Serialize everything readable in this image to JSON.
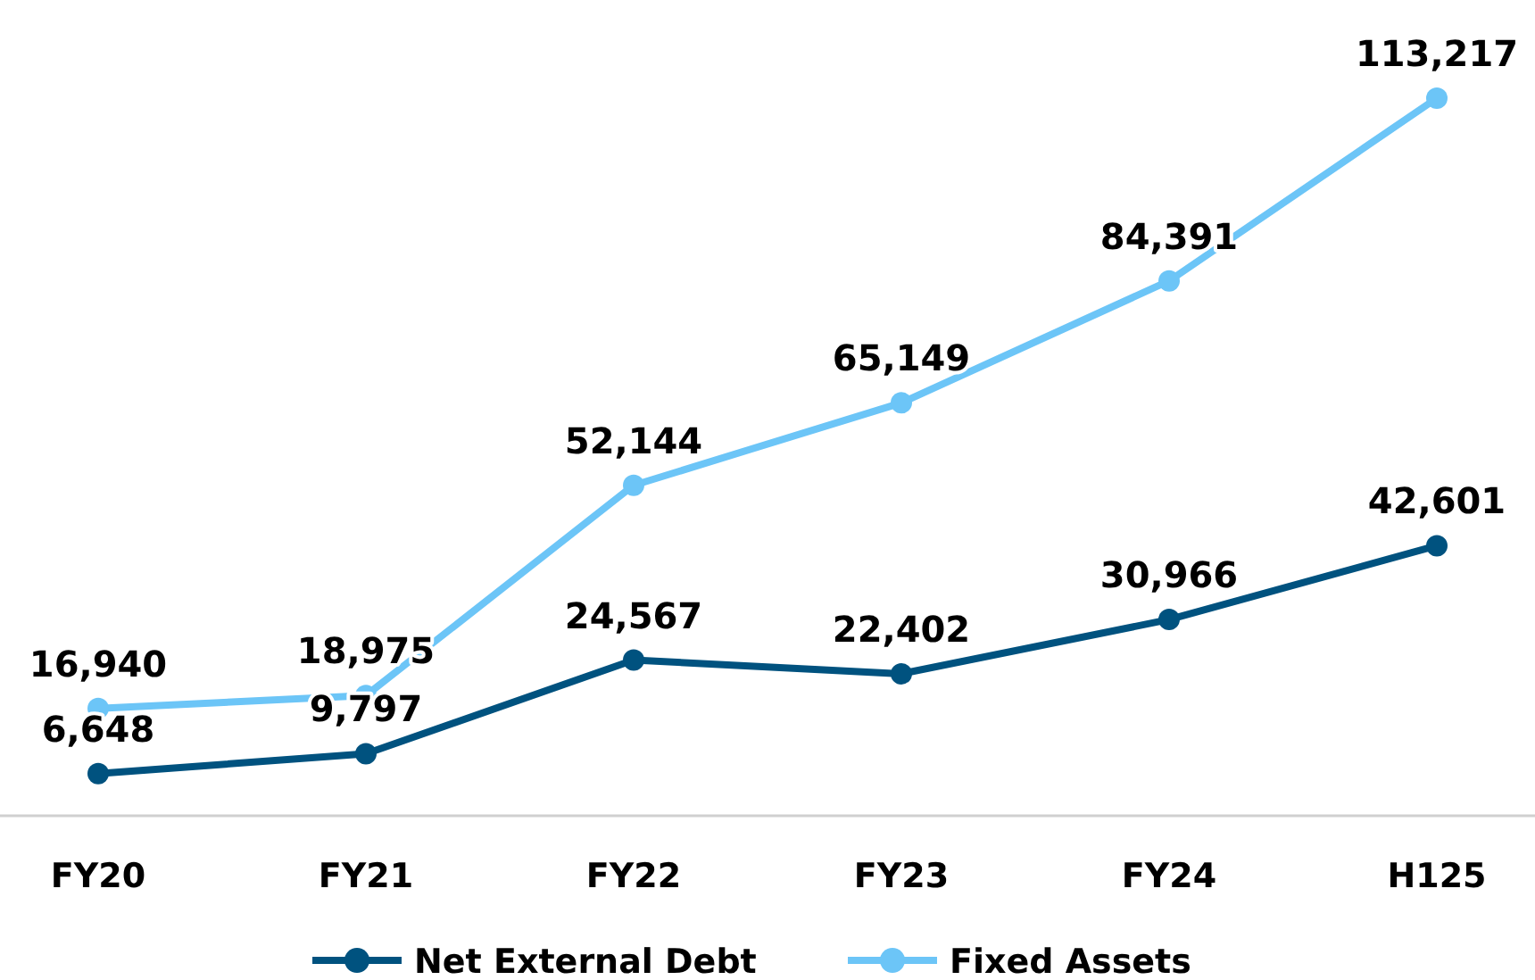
{
  "chart_data": {
    "type": "line",
    "categories": [
      "FY20",
      "FY21",
      "FY22",
      "FY23",
      "FY24",
      "H125"
    ],
    "series": [
      {
        "name": "Net External Debt",
        "color": "#00527f",
        "values": [
          6648,
          9797,
          24567,
          22402,
          30966,
          42601
        ],
        "value_labels": [
          "6,648",
          "9,797",
          "24,567",
          "22,402",
          "30,966",
          "42,601"
        ]
      },
      {
        "name": "Fixed Assets",
        "color": "#6cc5f7",
        "values": [
          16940,
          18975,
          52144,
          65149,
          84391,
          113217
        ],
        "value_labels": [
          "16,940",
          "18,975",
          "52,144",
          "65,149",
          "84,391",
          "113,217"
        ]
      }
    ],
    "tick_labels": "x",
    "legend": "bottom",
    "marker": "circle",
    "line_style": "solid",
    "grid": false
  }
}
